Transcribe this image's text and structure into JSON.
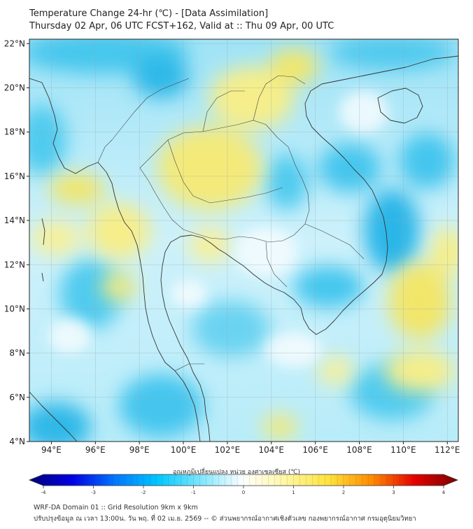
{
  "header": {
    "title": "Temperature Change 24-hr (℃) - [Data Assimilation]",
    "subtitle": "Thursday 02 Apr, 06 UTC FCST+162, Valid at :: Thu 09 Apr, 00 UTC"
  },
  "map": {
    "lon_range": [
      93,
      112.5
    ],
    "lat_range": [
      4,
      22.2
    ],
    "lon_ticks": [
      "94°E",
      "96°E",
      "98°E",
      "100°E",
      "102°E",
      "104°E",
      "106°E",
      "108°E",
      "110°E",
      "112°E"
    ],
    "lat_ticks": [
      "22°N",
      "20°N",
      "18°N",
      "16°N",
      "14°N",
      "12°N",
      "10°N",
      "8°N",
      "6°N",
      "4°N"
    ],
    "colors": {
      "cyan": "#40c8ee",
      "light_cyan": "#bfeefa",
      "near_zero": "#f4fbfd",
      "yellow": "#f6ee8a",
      "coast": "#3a3a3a"
    }
  },
  "colorbar": {
    "title": "อุณหภูมิเปลี่ยนแปลง หน่วย องศาเซลเซียส (℃)",
    "range": [
      -4,
      4
    ],
    "tick_labels": [
      "-4",
      "-3",
      "-2",
      "-1",
      "0",
      "1",
      "2",
      "3",
      "4"
    ],
    "colors": [
      "#00007a",
      "#0000e6",
      "#0077ff",
      "#00c8ff",
      "#7fe6ff",
      "#ffffff",
      "#fff7a0",
      "#ffe23a",
      "#ff8a00",
      "#e60000",
      "#7a0000"
    ]
  },
  "footer": {
    "line1": "WRF-DA Domain 01 :: Grid Resolution 9km x 9km",
    "line2": "ปรับปรุงข้อมูล ณ เวลา 13:00น. วัน พฤ. ที่ 02 เม.ย. 2569 -- © ส่วนพยากรณ์อากาศเชิงตัวเลข กองพยากรณ์อากาศ กรมอุตุนิยมวิทยา"
  }
}
